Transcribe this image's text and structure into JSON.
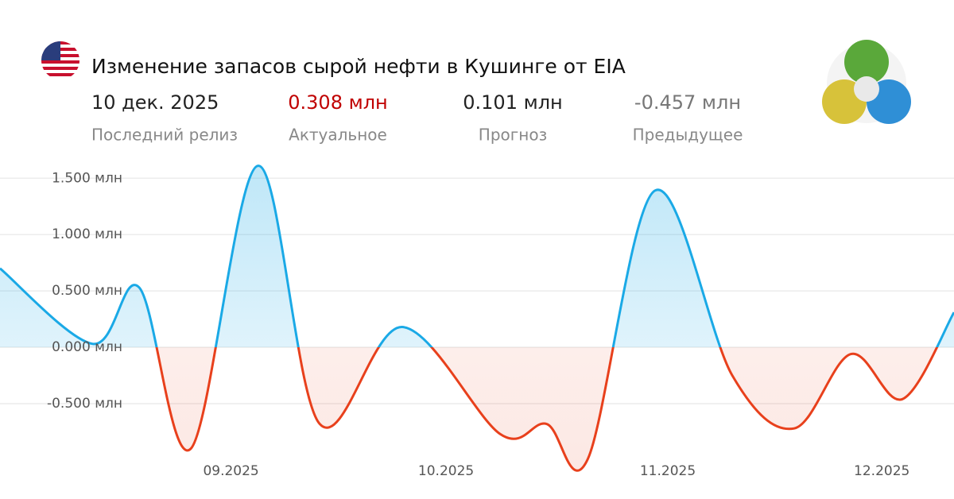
{
  "header": {
    "title": "Изменение запасов сырой нефти в Кушинге от EIA",
    "stats": [
      {
        "value": "10 дек. 2025",
        "label": "Последний релиз"
      },
      {
        "value": "0.308 млн",
        "label": "Актуальное"
      },
      {
        "value": "0.101 млн",
        "label": "Прогноз"
      },
      {
        "value": "-0.457 млн",
        "label": "Предыдущее"
      }
    ]
  },
  "chart_data": {
    "type": "line",
    "x": [
      0,
      1.8,
      2.7,
      3.7,
      5.0,
      6.2,
      7.8,
      9.7,
      10.6,
      11.4,
      12.7,
      14.2,
      15.4,
      16.5,
      17.5,
      18.5
    ],
    "values": [
      0.7,
      0.03,
      0.53,
      -0.9,
      1.61,
      -0.68,
      0.18,
      -0.77,
      -0.68,
      -0.99,
      1.39,
      -0.25,
      -0.72,
      -0.06,
      -0.46,
      0.31
    ],
    "color": "#1aa9e6",
    "negative_color": "#e8401c",
    "xlim": [
      0,
      18.5
    ],
    "xticks": [
      {
        "value": 4.48,
        "label": "09.2025"
      },
      {
        "value": 8.65,
        "label": "10.2025"
      },
      {
        "value": 12.95,
        "label": "11.2025"
      },
      {
        "value": 17.1,
        "label": "12.2025"
      }
    ],
    "ylim": [
      -1.05,
      1.65
    ],
    "yticks": [
      {
        "value": -0.5,
        "label": "-0.500 млн"
      },
      {
        "value": 0,
        "label": "0.000 млн"
      },
      {
        "value": 0.5,
        "label": "0.500 млн"
      },
      {
        "value": 1,
        "label": "1.000 млн"
      },
      {
        "value": 1.5,
        "label": "1.500 млн"
      }
    ],
    "grid": true
  }
}
